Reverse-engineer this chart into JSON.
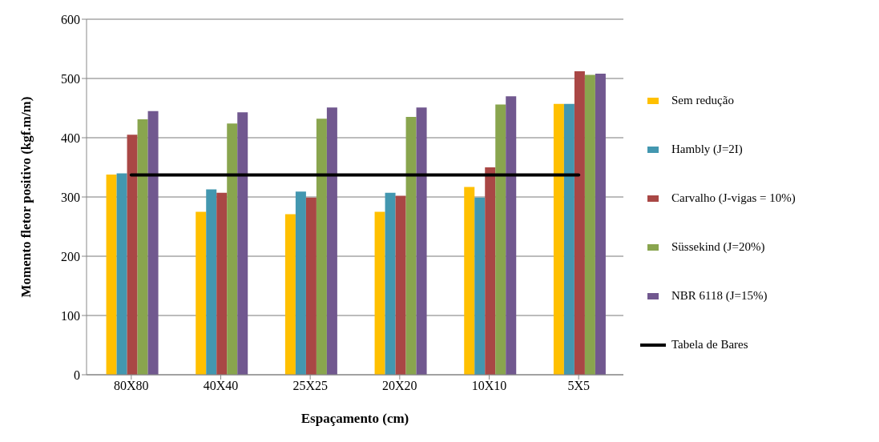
{
  "chart_data": {
    "type": "bar",
    "xlabel": "Espaçamento (cm)",
    "ylabel": "Momento fletor positivo (kgf.m/m)",
    "categories": [
      "80X80",
      "40X40",
      "25X25",
      "20X20",
      "10X10",
      "5X5"
    ],
    "series": [
      {
        "name": "Sem redução",
        "color": "#ffc000",
        "values": [
          338,
          275,
          271,
          275,
          317,
          457
        ]
      },
      {
        "name": "Hambly (J=2I)",
        "color": "#4397b0",
        "values": [
          340,
          313,
          309,
          307,
          299,
          457
        ]
      },
      {
        "name": "Carvalho (J-vigas = 10%)",
        "color": "#a94745",
        "values": [
          405,
          307,
          299,
          302,
          350,
          512
        ]
      },
      {
        "name": "Süssekind (J=20%)",
        "color": "#89a54e",
        "values": [
          431,
          424,
          432,
          435,
          456,
          506
        ]
      },
      {
        "name": "NBR 6118 (J=15%)",
        "color": "#71588f",
        "values": [
          445,
          443,
          451,
          451,
          470,
          508
        ]
      },
      {
        "name": "Tabela de Bares",
        "color": "#000000",
        "type": "line",
        "values": [
          337,
          337,
          337,
          337,
          337,
          337
        ]
      }
    ],
    "ylim": [
      0,
      600
    ],
    "yticks": [
      0,
      100,
      200,
      300,
      400,
      500,
      600
    ],
    "grid": "y",
    "legend": "right",
    "marker": "none"
  }
}
